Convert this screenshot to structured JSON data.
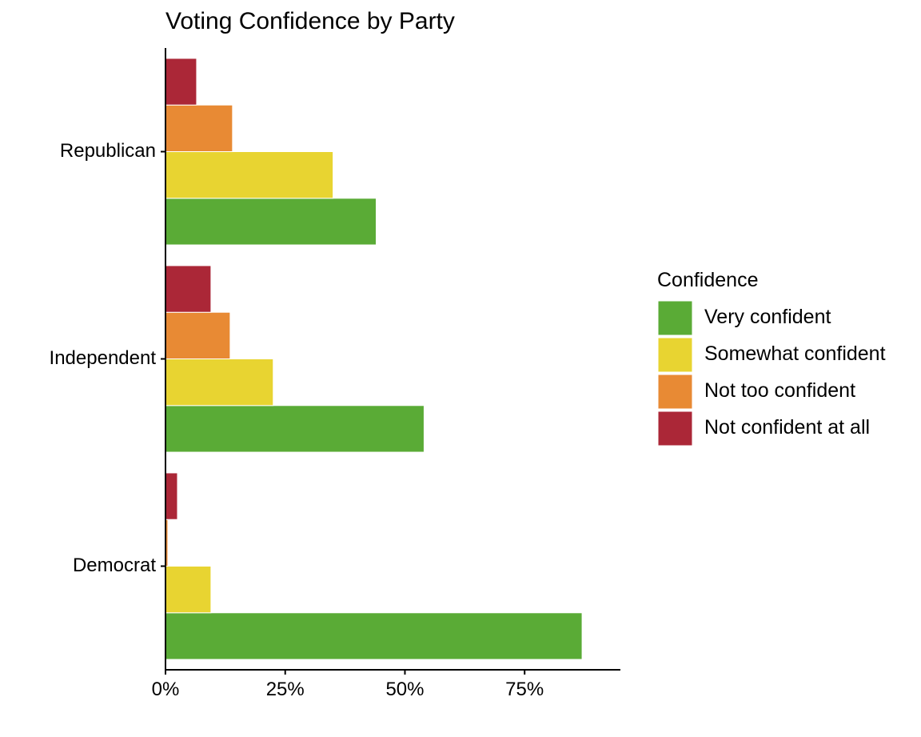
{
  "chart_data": {
    "type": "bar",
    "orientation": "horizontal",
    "title": "Voting Confidence by Party",
    "xlabel": "",
    "ylabel": "",
    "categories": [
      "Republican",
      "Independent",
      "Democrat"
    ],
    "xlim": [
      0,
      95
    ],
    "x_ticks": [
      0,
      25,
      50,
      75
    ],
    "x_tick_labels": [
      "0%",
      "25%",
      "50%",
      "75%"
    ],
    "grid": false,
    "legend": {
      "title": "Confidence",
      "position": "right"
    },
    "series": [
      {
        "name": "Very confident",
        "color": "#5aab36",
        "values": [
          44,
          54,
          87
        ]
      },
      {
        "name": "Somewhat confident",
        "color": "#e8d431",
        "values": [
          35,
          22.5,
          9.5
        ]
      },
      {
        "name": "Not too confident",
        "color": "#e88a34",
        "values": [
          14,
          13.5,
          0.5
        ]
      },
      {
        "name": "Not confident at all",
        "color": "#ab2737",
        "values": [
          6.5,
          9.5,
          2.5
        ]
      }
    ]
  }
}
